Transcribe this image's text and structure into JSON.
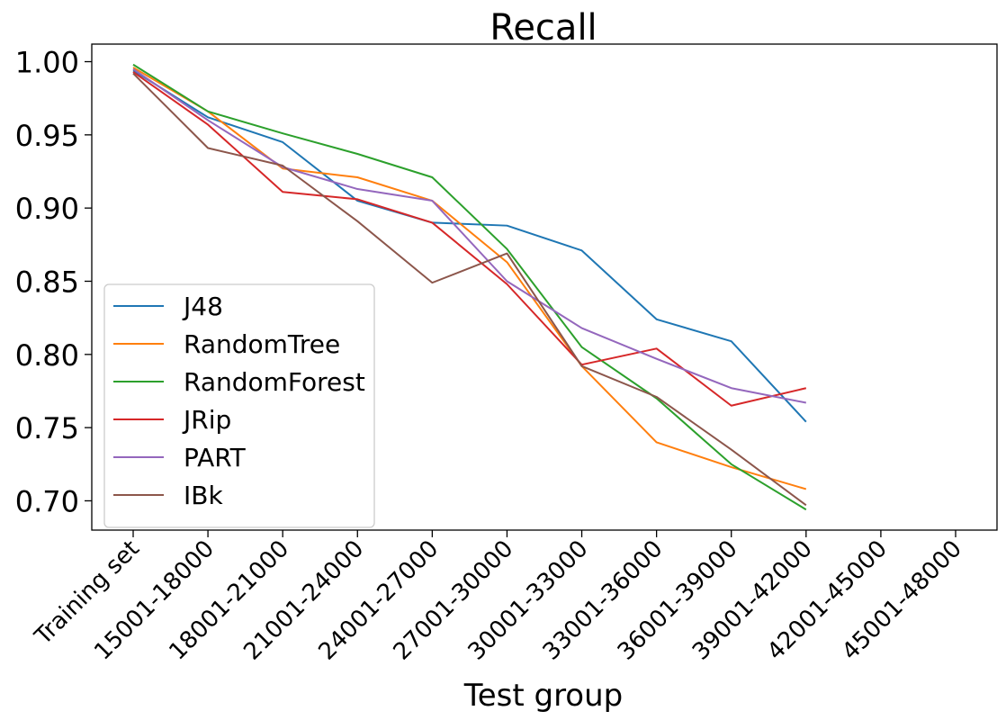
{
  "chart_data": {
    "type": "line",
    "title": "Recall",
    "xlabel": "Test group",
    "ylabel": "",
    "categories": [
      "Training set",
      "15001-18000",
      "18001-21000",
      "21001-24000",
      "24001-27000",
      "27001-30000",
      "30001-33000",
      "33001-36000",
      "36001-39000",
      "39001-42000",
      "42001-45000",
      "45001-48000"
    ],
    "ylim": [
      0.68,
      1.012
    ],
    "yticks": [
      0.7,
      0.75,
      0.8,
      0.85,
      0.9,
      0.95,
      1.0
    ],
    "ytick_labels": [
      "0.70",
      "0.75",
      "0.80",
      "0.85",
      "0.90",
      "0.95",
      "1.00"
    ],
    "grid": false,
    "legend_position": "lower-left",
    "series": [
      {
        "name": "J48",
        "color": "#1f77b4",
        "values": [
          0.994,
          0.962,
          0.945,
          0.905,
          0.89,
          0.888,
          0.871,
          0.824,
          0.809,
          0.754,
          null,
          null
        ]
      },
      {
        "name": "RandomTree",
        "color": "#ff7f0e",
        "values": [
          0.996,
          0.966,
          0.927,
          0.921,
          0.905,
          0.863,
          0.792,
          0.74,
          0.723,
          0.708,
          null,
          null
        ]
      },
      {
        "name": "RandomForest",
        "color": "#2ca02c",
        "values": [
          0.998,
          0.966,
          0.951,
          0.937,
          0.921,
          0.872,
          0.805,
          0.77,
          0.725,
          0.694,
          null,
          null
        ]
      },
      {
        "name": "JRip",
        "color": "#d62728",
        "values": [
          0.993,
          0.957,
          0.911,
          0.906,
          0.89,
          0.848,
          0.793,
          0.804,
          0.765,
          0.777,
          null,
          null
        ]
      },
      {
        "name": "PART",
        "color": "#9467bd",
        "values": [
          0.995,
          0.96,
          0.928,
          0.913,
          0.905,
          0.85,
          0.818,
          0.797,
          0.777,
          0.767,
          null,
          null
        ]
      },
      {
        "name": "IBk",
        "color": "#8c564b",
        "values": [
          0.992,
          0.941,
          0.929,
          0.891,
          0.849,
          0.869,
          0.792,
          0.771,
          0.735,
          0.697,
          null,
          null
        ]
      }
    ]
  }
}
